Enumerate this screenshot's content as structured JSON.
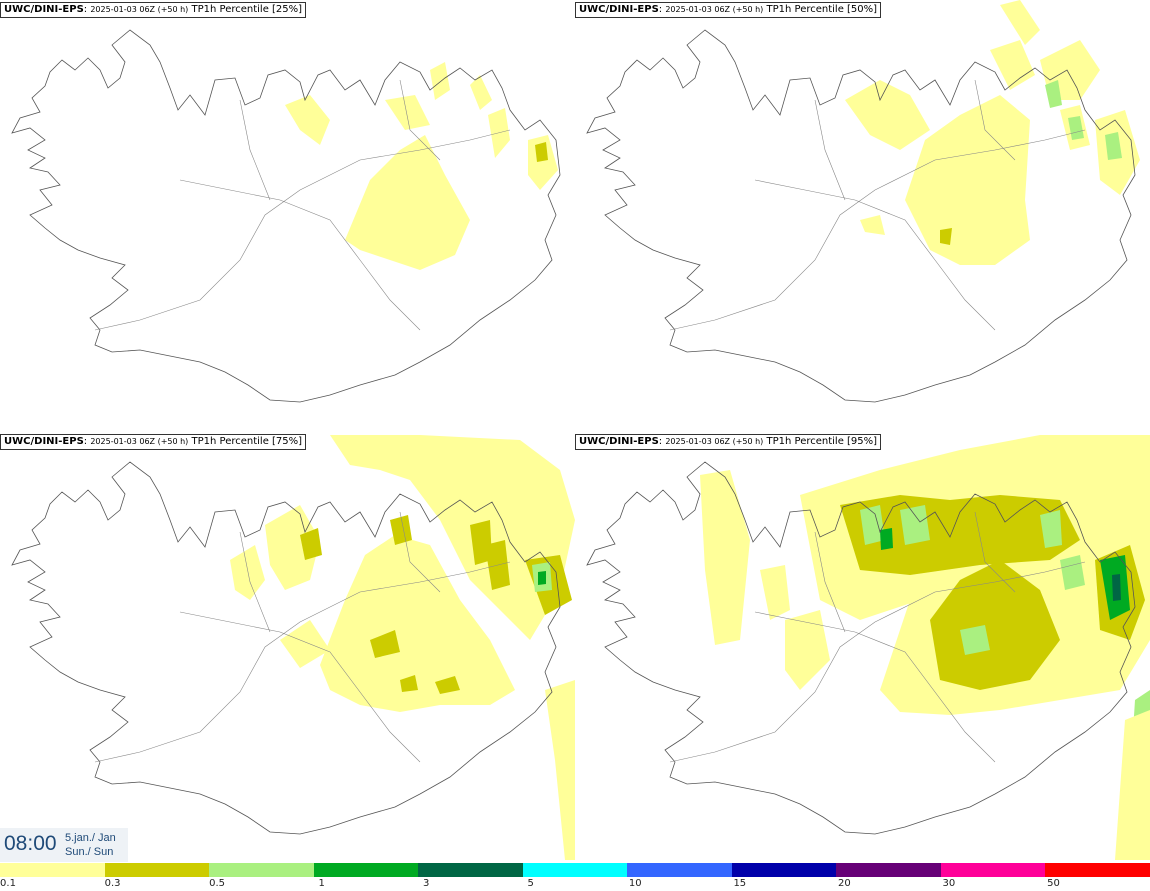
{
  "panels": [
    {
      "model": "UWC/DINI-EPS",
      "meta": "2025-01-03 06Z (+50 h)",
      "field": "TP1h Percentile [25%]"
    },
    {
      "model": "UWC/DINI-EPS",
      "meta": "2025-01-03 06Z (+50 h)",
      "field": "TP1h Percentile [50%]"
    },
    {
      "model": "UWC/DINI-EPS",
      "meta": "2025-01-03 06Z (+50 h)",
      "field": "TP1h Percentile [75%]"
    },
    {
      "model": "UWC/DINI-EPS",
      "meta": "2025-01-03 06Z (+50 h)",
      "field": "TP1h Percentile [95%]"
    }
  ],
  "time": {
    "clock": "08:00",
    "date_line": "5.jan./ Jan",
    "day_line": "Sun./ Sun"
  },
  "legend": {
    "colors": [
      "#ffff99",
      "#cccc00",
      "#aaf080",
      "#00aa22",
      "#006644",
      "#00ffff",
      "#3366ff",
      "#0000aa",
      "#660077",
      "#ff0099",
      "#ff0000"
    ],
    "labels": [
      "0.1",
      "0.3",
      "0.5",
      "1",
      "3",
      "5",
      "10",
      "15",
      "20",
      "30",
      "50"
    ]
  }
}
